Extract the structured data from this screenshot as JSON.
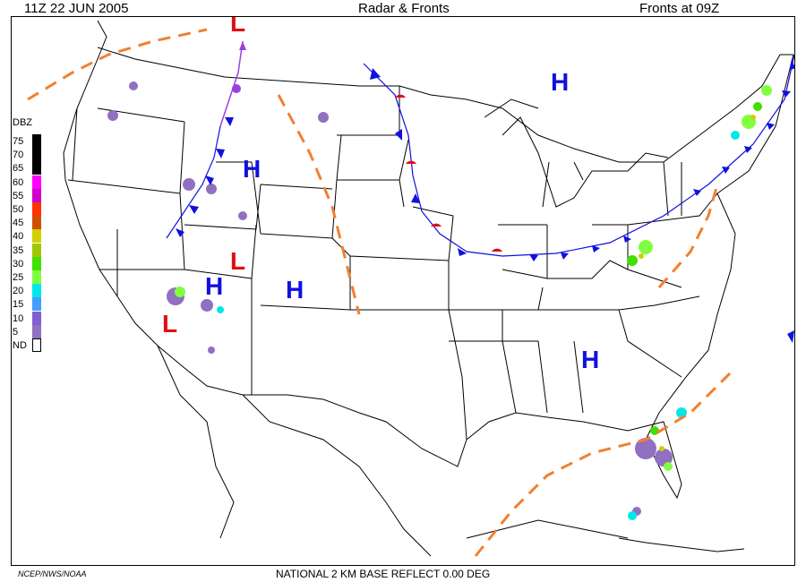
{
  "header": {
    "left": "11Z  22 JUN  2005",
    "center": "Radar & Fronts",
    "right": "Fronts at 09Z"
  },
  "footer": {
    "credit": "NCEP/NWS/NOAA",
    "product": "NATIONAL 2 KM BASE REFLECT 0.00 DEG"
  },
  "legend": {
    "title": "DBZ",
    "items": [
      {
        "label": "75",
        "color": "#000000"
      },
      {
        "label": "70",
        "color": "#000000"
      },
      {
        "label": "65",
        "color": "#000000"
      },
      {
        "label": "60",
        "color": "#ff00ff"
      },
      {
        "label": "55",
        "color": "#d000c8"
      },
      {
        "label": "50",
        "color": "#ff3300"
      },
      {
        "label": "45",
        "color": "#d05000"
      },
      {
        "label": "40",
        "color": "#d0d000"
      },
      {
        "label": "35",
        "color": "#a0c800"
      },
      {
        "label": "30",
        "color": "#40e000"
      },
      {
        "label": "25",
        "color": "#80ff40"
      },
      {
        "label": "20",
        "color": "#00e8e8"
      },
      {
        "label": "15",
        "color": "#40a0ff"
      },
      {
        "label": "10",
        "color": "#8060d0"
      },
      {
        "label": "5",
        "color": "#9070c0"
      },
      {
        "label": "ND",
        "color": "#ffffff"
      }
    ]
  },
  "pressure_centers": [
    {
      "type": "H",
      "label": "H",
      "color": "#1010e0"
    },
    {
      "type": "H",
      "label": "H",
      "color": "#1010e0"
    },
    {
      "type": "H",
      "label": "H",
      "color": "#1010e0"
    },
    {
      "type": "H",
      "label": "H",
      "color": "#1010e0"
    },
    {
      "type": "H",
      "label": "H",
      "color": "#1010e0"
    },
    {
      "type": "L",
      "label": "L",
      "color": "#e01010"
    },
    {
      "type": "L",
      "label": "L",
      "color": "#e01010"
    },
    {
      "type": "L",
      "label": "L",
      "color": "#e01010"
    }
  ],
  "colors": {
    "cold_front": "#1010e0",
    "warm_front": "#e01010",
    "occluded_front": "#9a40e0",
    "trough": "#f08030"
  }
}
